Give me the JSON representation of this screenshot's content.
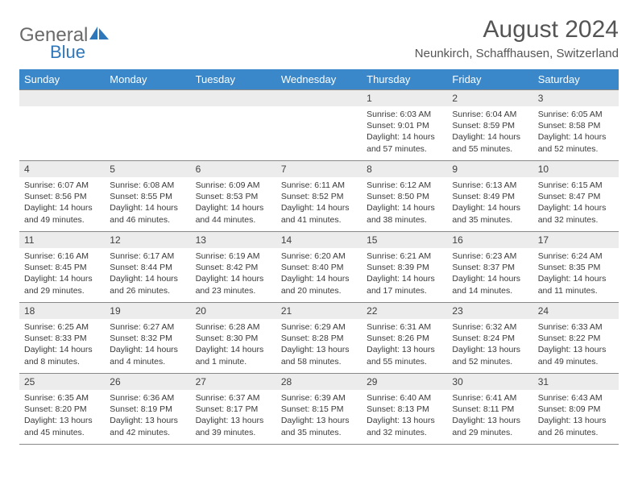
{
  "logo": {
    "general": "General",
    "blue": "Blue"
  },
  "title": "August 2024",
  "location": "Neunkirch, Schaffhausen, Switzerland",
  "colors": {
    "header_bg": "#3a87c9",
    "header_text": "#ffffff",
    "daynum_bg": "#ececec",
    "text": "#3a3a3a",
    "border": "#888888",
    "logo_gray": "#6a6a6a",
    "logo_blue": "#2f77bb"
  },
  "day_headers": [
    "Sunday",
    "Monday",
    "Tuesday",
    "Wednesday",
    "Thursday",
    "Friday",
    "Saturday"
  ],
  "weeks": [
    [
      {
        "n": "",
        "sr": "",
        "ss": "",
        "dl": ""
      },
      {
        "n": "",
        "sr": "",
        "ss": "",
        "dl": ""
      },
      {
        "n": "",
        "sr": "",
        "ss": "",
        "dl": ""
      },
      {
        "n": "",
        "sr": "",
        "ss": "",
        "dl": ""
      },
      {
        "n": "1",
        "sr": "Sunrise: 6:03 AM",
        "ss": "Sunset: 9:01 PM",
        "dl": "Daylight: 14 hours and 57 minutes."
      },
      {
        "n": "2",
        "sr": "Sunrise: 6:04 AM",
        "ss": "Sunset: 8:59 PM",
        "dl": "Daylight: 14 hours and 55 minutes."
      },
      {
        "n": "3",
        "sr": "Sunrise: 6:05 AM",
        "ss": "Sunset: 8:58 PM",
        "dl": "Daylight: 14 hours and 52 minutes."
      }
    ],
    [
      {
        "n": "4",
        "sr": "Sunrise: 6:07 AM",
        "ss": "Sunset: 8:56 PM",
        "dl": "Daylight: 14 hours and 49 minutes."
      },
      {
        "n": "5",
        "sr": "Sunrise: 6:08 AM",
        "ss": "Sunset: 8:55 PM",
        "dl": "Daylight: 14 hours and 46 minutes."
      },
      {
        "n": "6",
        "sr": "Sunrise: 6:09 AM",
        "ss": "Sunset: 8:53 PM",
        "dl": "Daylight: 14 hours and 44 minutes."
      },
      {
        "n": "7",
        "sr": "Sunrise: 6:11 AM",
        "ss": "Sunset: 8:52 PM",
        "dl": "Daylight: 14 hours and 41 minutes."
      },
      {
        "n": "8",
        "sr": "Sunrise: 6:12 AM",
        "ss": "Sunset: 8:50 PM",
        "dl": "Daylight: 14 hours and 38 minutes."
      },
      {
        "n": "9",
        "sr": "Sunrise: 6:13 AM",
        "ss": "Sunset: 8:49 PM",
        "dl": "Daylight: 14 hours and 35 minutes."
      },
      {
        "n": "10",
        "sr": "Sunrise: 6:15 AM",
        "ss": "Sunset: 8:47 PM",
        "dl": "Daylight: 14 hours and 32 minutes."
      }
    ],
    [
      {
        "n": "11",
        "sr": "Sunrise: 6:16 AM",
        "ss": "Sunset: 8:45 PM",
        "dl": "Daylight: 14 hours and 29 minutes."
      },
      {
        "n": "12",
        "sr": "Sunrise: 6:17 AM",
        "ss": "Sunset: 8:44 PM",
        "dl": "Daylight: 14 hours and 26 minutes."
      },
      {
        "n": "13",
        "sr": "Sunrise: 6:19 AM",
        "ss": "Sunset: 8:42 PM",
        "dl": "Daylight: 14 hours and 23 minutes."
      },
      {
        "n": "14",
        "sr": "Sunrise: 6:20 AM",
        "ss": "Sunset: 8:40 PM",
        "dl": "Daylight: 14 hours and 20 minutes."
      },
      {
        "n": "15",
        "sr": "Sunrise: 6:21 AM",
        "ss": "Sunset: 8:39 PM",
        "dl": "Daylight: 14 hours and 17 minutes."
      },
      {
        "n": "16",
        "sr": "Sunrise: 6:23 AM",
        "ss": "Sunset: 8:37 PM",
        "dl": "Daylight: 14 hours and 14 minutes."
      },
      {
        "n": "17",
        "sr": "Sunrise: 6:24 AM",
        "ss": "Sunset: 8:35 PM",
        "dl": "Daylight: 14 hours and 11 minutes."
      }
    ],
    [
      {
        "n": "18",
        "sr": "Sunrise: 6:25 AM",
        "ss": "Sunset: 8:33 PM",
        "dl": "Daylight: 14 hours and 8 minutes."
      },
      {
        "n": "19",
        "sr": "Sunrise: 6:27 AM",
        "ss": "Sunset: 8:32 PM",
        "dl": "Daylight: 14 hours and 4 minutes."
      },
      {
        "n": "20",
        "sr": "Sunrise: 6:28 AM",
        "ss": "Sunset: 8:30 PM",
        "dl": "Daylight: 14 hours and 1 minute."
      },
      {
        "n": "21",
        "sr": "Sunrise: 6:29 AM",
        "ss": "Sunset: 8:28 PM",
        "dl": "Daylight: 13 hours and 58 minutes."
      },
      {
        "n": "22",
        "sr": "Sunrise: 6:31 AM",
        "ss": "Sunset: 8:26 PM",
        "dl": "Daylight: 13 hours and 55 minutes."
      },
      {
        "n": "23",
        "sr": "Sunrise: 6:32 AM",
        "ss": "Sunset: 8:24 PM",
        "dl": "Daylight: 13 hours and 52 minutes."
      },
      {
        "n": "24",
        "sr": "Sunrise: 6:33 AM",
        "ss": "Sunset: 8:22 PM",
        "dl": "Daylight: 13 hours and 49 minutes."
      }
    ],
    [
      {
        "n": "25",
        "sr": "Sunrise: 6:35 AM",
        "ss": "Sunset: 8:20 PM",
        "dl": "Daylight: 13 hours and 45 minutes."
      },
      {
        "n": "26",
        "sr": "Sunrise: 6:36 AM",
        "ss": "Sunset: 8:19 PM",
        "dl": "Daylight: 13 hours and 42 minutes."
      },
      {
        "n": "27",
        "sr": "Sunrise: 6:37 AM",
        "ss": "Sunset: 8:17 PM",
        "dl": "Daylight: 13 hours and 39 minutes."
      },
      {
        "n": "28",
        "sr": "Sunrise: 6:39 AM",
        "ss": "Sunset: 8:15 PM",
        "dl": "Daylight: 13 hours and 35 minutes."
      },
      {
        "n": "29",
        "sr": "Sunrise: 6:40 AM",
        "ss": "Sunset: 8:13 PM",
        "dl": "Daylight: 13 hours and 32 minutes."
      },
      {
        "n": "30",
        "sr": "Sunrise: 6:41 AM",
        "ss": "Sunset: 8:11 PM",
        "dl": "Daylight: 13 hours and 29 minutes."
      },
      {
        "n": "31",
        "sr": "Sunrise: 6:43 AM",
        "ss": "Sunset: 8:09 PM",
        "dl": "Daylight: 13 hours and 26 minutes."
      }
    ]
  ]
}
